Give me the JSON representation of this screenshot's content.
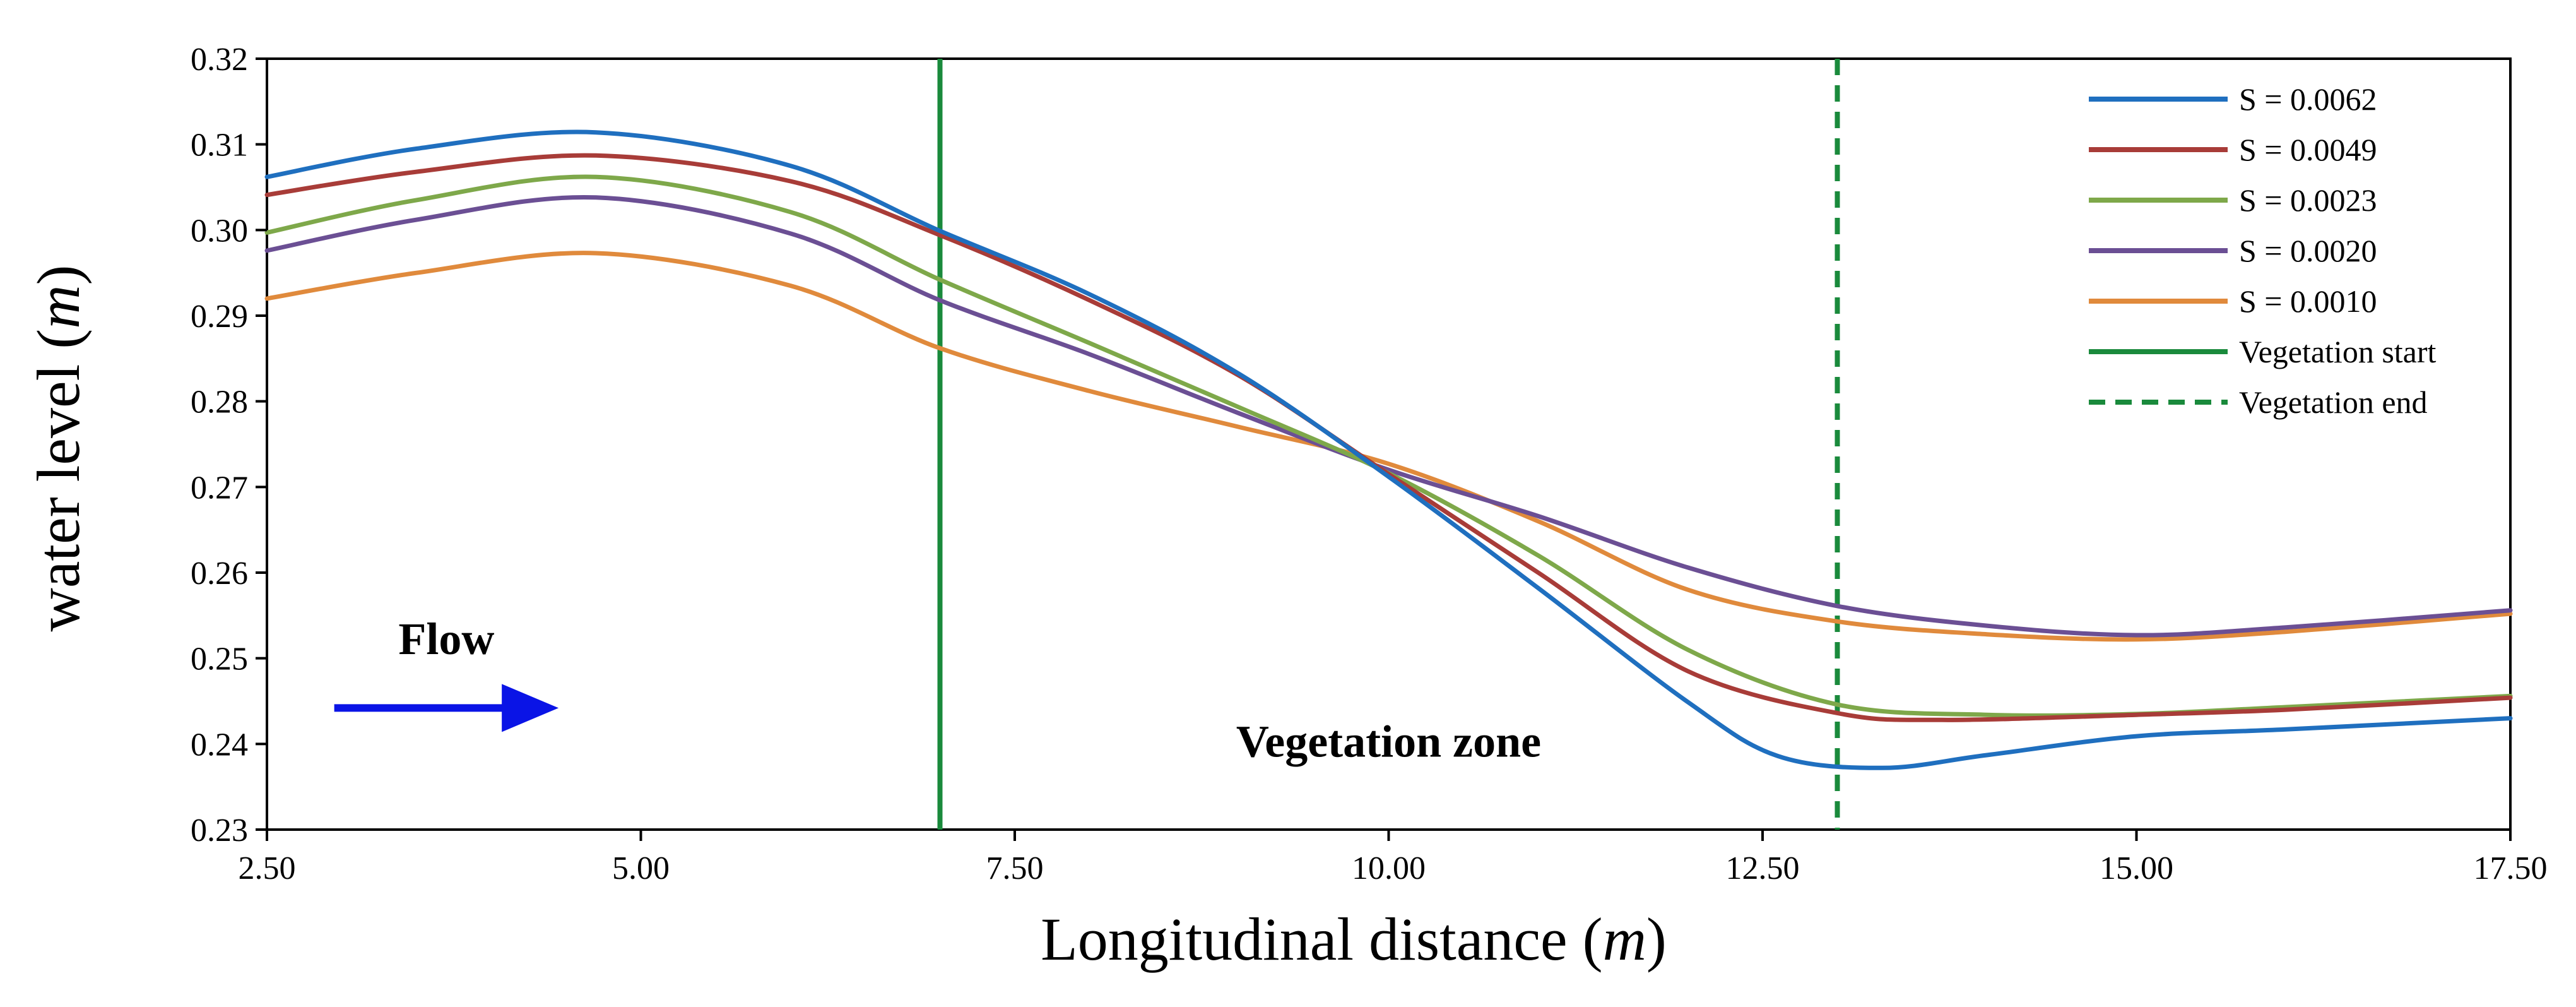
{
  "chart_data": {
    "type": "line",
    "title": "",
    "xlabel_text": "Longitudinal distance (",
    "xlabel_unit": "m",
    "xlabel_close": ")",
    "ylabel_text": "water level (",
    "ylabel_unit": "m",
    "ylabel_close": ")",
    "xlim": [
      2.5,
      17.5
    ],
    "ylim": [
      0.23,
      0.32
    ],
    "x_ticks": [
      2.5,
      5.0,
      7.5,
      10.0,
      12.5,
      15.0,
      17.5
    ],
    "x_tick_labels": [
      "2.50",
      "5.00",
      "7.50",
      "10.00",
      "12.50",
      "15.00",
      "17.50"
    ],
    "y_ticks": [
      0.23,
      0.24,
      0.25,
      0.26,
      0.27,
      0.28,
      0.29,
      0.3,
      0.31,
      0.32
    ],
    "y_tick_labels": [
      "0.23",
      "0.24",
      "0.25",
      "0.26",
      "0.27",
      "0.28",
      "0.29",
      "0.30",
      "0.31",
      "0.32"
    ],
    "grid": false,
    "legend_position": "top-right",
    "series": [
      {
        "name": "S = 0.0062",
        "color": "#1f6fbf",
        "x": [
          2.5,
          3.5,
          4.7,
          6.0,
          7.0,
          8.0,
          9.0,
          10.0,
          11.0,
          12.0,
          12.6,
          13.3,
          14.0,
          15.0,
          16.0,
          17.5
        ],
        "y": [
          0.3062,
          0.3095,
          0.3114,
          0.3075,
          0.2999,
          0.2925,
          0.2832,
          0.2712,
          0.2582,
          0.2449,
          0.2386,
          0.2372,
          0.2387,
          0.2409,
          0.2417,
          0.243
        ]
      },
      {
        "name": "S = 0.0049",
        "color": "#a83c38",
        "x": [
          2.5,
          3.5,
          4.7,
          6.0,
          7.0,
          8.0,
          9.0,
          10.0,
          11.0,
          12.0,
          13.0,
          13.7,
          15.0,
          16.0,
          17.5
        ],
        "y": [
          0.3041,
          0.3068,
          0.3087,
          0.3057,
          0.2994,
          0.2918,
          0.283,
          0.2715,
          0.26,
          0.2485,
          0.2436,
          0.2428,
          0.2434,
          0.244,
          0.2454
        ]
      },
      {
        "name": "S = 0.0023",
        "color": "#7ea84a",
        "x": [
          2.5,
          3.5,
          4.7,
          6.0,
          7.0,
          8.0,
          9.0,
          10.0,
          11.0,
          12.0,
          13.0,
          14.0,
          15.0,
          16.0,
          17.5
        ],
        "y": [
          0.2997,
          0.3035,
          0.3062,
          0.3021,
          0.2942,
          0.2868,
          0.2793,
          0.2716,
          0.262,
          0.251,
          0.2446,
          0.2434,
          0.2435,
          0.2443,
          0.2456
        ]
      },
      {
        "name": "S = 0.0020",
        "color": "#6b4f94",
        "x": [
          2.5,
          3.5,
          4.7,
          6.0,
          7.0,
          8.0,
          9.0,
          10.0,
          11.0,
          12.0,
          13.0,
          14.0,
          15.0,
          16.0,
          17.5
        ],
        "y": [
          0.2976,
          0.3012,
          0.3038,
          0.2996,
          0.2918,
          0.2855,
          0.2786,
          0.272,
          0.2666,
          0.2606,
          0.2561,
          0.2538,
          0.2527,
          0.2536,
          0.2556
        ]
      },
      {
        "name": "S = 0.0010",
        "color": "#e08a3c",
        "x": [
          2.5,
          3.5,
          4.7,
          6.0,
          7.0,
          8.0,
          9.0,
          10.0,
          11.0,
          12.0,
          13.0,
          14.0,
          15.0,
          16.0,
          17.5
        ],
        "y": [
          0.292,
          0.295,
          0.2973,
          0.2935,
          0.2862,
          0.2812,
          0.277,
          0.2727,
          0.266,
          0.258,
          0.2543,
          0.2528,
          0.2522,
          0.2531,
          0.2552
        ]
      }
    ],
    "vlines": [
      {
        "name": "Vegetation start",
        "x": 7.0,
        "color": "#1a8a3c",
        "dashed": false
      },
      {
        "name": "Vegetation end",
        "x": 13.0,
        "color": "#1a8a3c",
        "dashed": true
      }
    ],
    "annotations": {
      "flow_label": "Flow",
      "flow_arrow_color": "#0a14e6",
      "flow_arrow_x": [
        2.95,
        4.45
      ],
      "flow_arrow_y": 0.2442,
      "flow_label_x": 3.7,
      "flow_label_y": 0.2505,
      "zone_label": "Vegetation zone",
      "zone_label_x": 10.0,
      "zone_label_y": 0.2385
    }
  }
}
